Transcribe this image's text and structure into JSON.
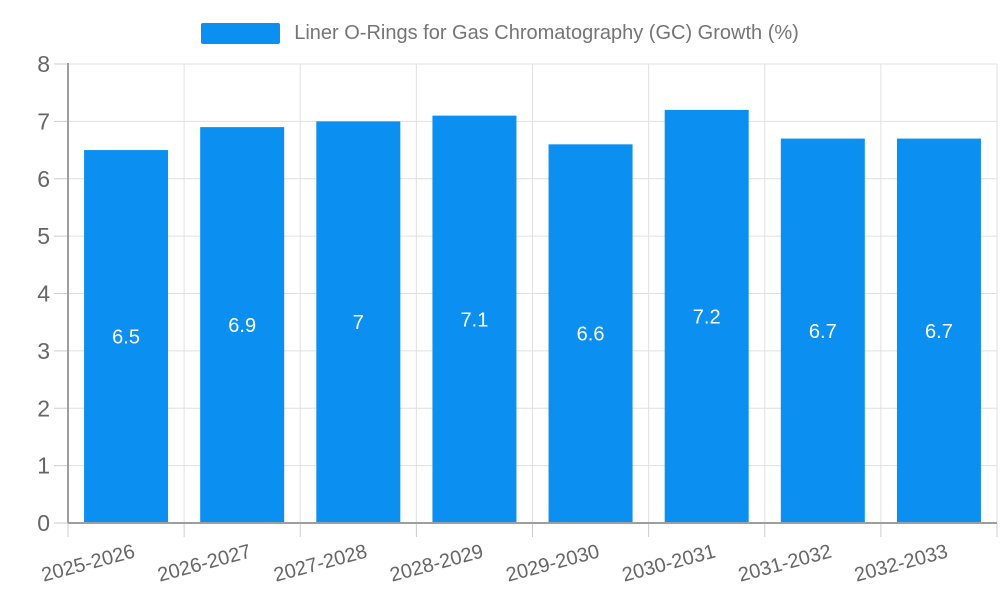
{
  "chart_data": {
    "type": "bar",
    "title": "Liner O-Rings for Gas Chromatography (GC) Growth (%)",
    "categories": [
      "2025-2026",
      "2026-2027",
      "2027-2028",
      "2028-2029",
      "2029-2030",
      "2030-2031",
      "2031-2032",
      "2032-2033"
    ],
    "values": [
      6.5,
      6.9,
      7,
      7.1,
      6.6,
      7.2,
      6.7,
      6.7
    ],
    "value_labels": [
      "6.5",
      "6.9",
      "7",
      "7.1",
      "6.6",
      "7.2",
      "6.7",
      "6.7"
    ],
    "xlabel": "",
    "ylabel": "",
    "ylim": [
      0,
      8
    ],
    "y_ticks": [
      "0",
      "1",
      "2",
      "3",
      "4",
      "5",
      "6",
      "7",
      "8"
    ],
    "grid": true,
    "legend_position": "top",
    "x_label_rotation_deg": -15,
    "colors": {
      "bar": "#0b90f2",
      "bar_value_text": "#ffffff",
      "title_text": "#757575",
      "axis_text": "#666666",
      "grid_line": "#e0e0e0",
      "tick_line": "#cccccc",
      "axis_line": "#9e9e9e",
      "background": "#ffffff"
    }
  }
}
